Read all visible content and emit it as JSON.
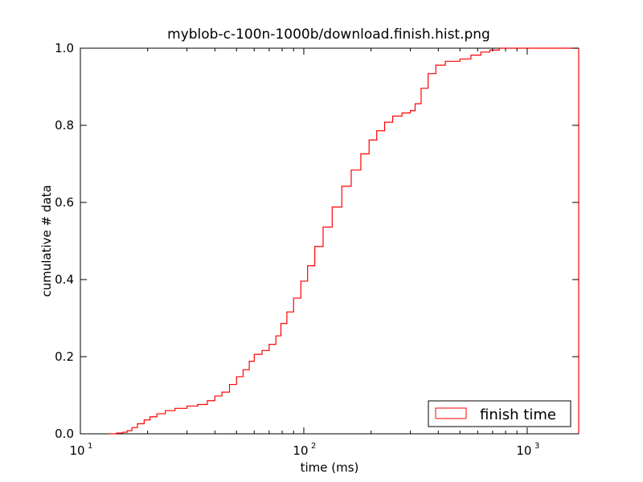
{
  "chart_data": {
    "type": "line",
    "title": "myblob-c-100n-1000b/download.finish.hist.png",
    "xlabel": "time (ms)",
    "ylabel": "cumulative # data",
    "xscale": "log",
    "xlim": [
      10,
      1700
    ],
    "ylim": [
      0.0,
      1.0
    ],
    "x_ticks": [
      {
        "value": 10,
        "base": "10",
        "exp": "1"
      },
      {
        "value": 100,
        "base": "10",
        "exp": "2"
      },
      {
        "value": 1000,
        "base": "10",
        "exp": "3"
      }
    ],
    "y_ticks": [
      {
        "value": 0.0,
        "label": "0.0"
      },
      {
        "value": 0.2,
        "label": "0.2"
      },
      {
        "value": 0.4,
        "label": "0.4"
      },
      {
        "value": 0.6,
        "label": "0.6"
      },
      {
        "value": 0.8,
        "label": "0.8"
      },
      {
        "value": 1.0,
        "label": "1.0"
      }
    ],
    "grid": false,
    "legend": {
      "position": "bottom-right",
      "entries": [
        "finish time"
      ]
    },
    "series": [
      {
        "name": "finish time",
        "color": "#ff0000",
        "style": "step",
        "points": [
          [
            13.4,
            0.0
          ],
          [
            14.5,
            0.002
          ],
          [
            15.5,
            0.004
          ],
          [
            16.2,
            0.008
          ],
          [
            17.0,
            0.016
          ],
          [
            18.0,
            0.026
          ],
          [
            19.3,
            0.036
          ],
          [
            20.5,
            0.044
          ],
          [
            22.0,
            0.052
          ],
          [
            24.0,
            0.06
          ],
          [
            26.5,
            0.066
          ],
          [
            30.0,
            0.072
          ],
          [
            33.5,
            0.076
          ],
          [
            37.0,
            0.086
          ],
          [
            40.0,
            0.098
          ],
          [
            43.0,
            0.108
          ],
          [
            46.5,
            0.128
          ],
          [
            50.0,
            0.148
          ],
          [
            53.5,
            0.166
          ],
          [
            57.0,
            0.188
          ],
          [
            60.0,
            0.206
          ],
          [
            65.0,
            0.216
          ],
          [
            70.0,
            0.232
          ],
          [
            75.0,
            0.254
          ],
          [
            79.0,
            0.286
          ],
          [
            84.0,
            0.316
          ],
          [
            90.0,
            0.352
          ],
          [
            97.0,
            0.396
          ],
          [
            104.0,
            0.436
          ],
          [
            112.0,
            0.486
          ],
          [
            122.0,
            0.536
          ],
          [
            134.0,
            0.588
          ],
          [
            148.0,
            0.642
          ],
          [
            163.0,
            0.684
          ],
          [
            180.0,
            0.726
          ],
          [
            196.0,
            0.762
          ],
          [
            212.0,
            0.786
          ],
          [
            230.0,
            0.808
          ],
          [
            250.0,
            0.824
          ],
          [
            275.0,
            0.832
          ],
          [
            300.0,
            0.838
          ],
          [
            315.0,
            0.856
          ],
          [
            335.0,
            0.896
          ],
          [
            360.0,
            0.934
          ],
          [
            390.0,
            0.956
          ],
          [
            430.0,
            0.966
          ],
          [
            500.0,
            0.972
          ],
          [
            560.0,
            0.982
          ],
          [
            620.0,
            0.99
          ],
          [
            680.0,
            0.995
          ],
          [
            750.0,
            1.0
          ],
          [
            1700.0,
            1.0
          ]
        ]
      }
    ]
  }
}
